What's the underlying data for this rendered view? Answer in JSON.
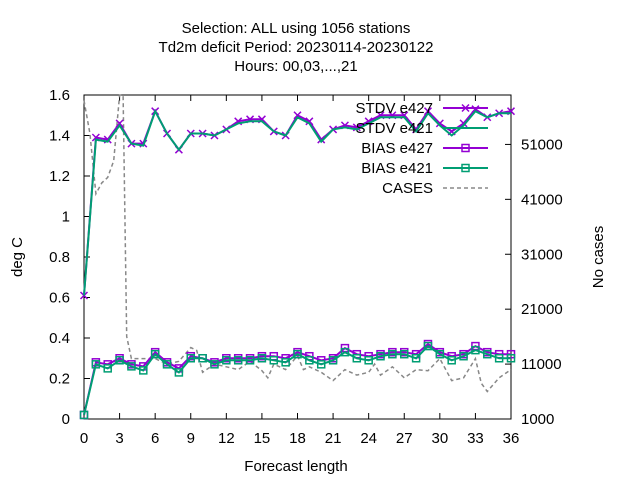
{
  "chart_data": {
    "type": "line",
    "title_lines": [
      "Selection: ALL using  1056 stations",
      "Td2m deficit   Period: 20230114-20230122",
      "Hours:  00,03,...,21"
    ],
    "xlabel": "Forecast length",
    "ylabel": "deg C",
    "y2label": "No cases",
    "xlim": [
      0,
      36
    ],
    "ylim": [
      0,
      1.6
    ],
    "y2lim": [
      1000,
      60000
    ],
    "x_ticks": [
      0,
      3,
      6,
      9,
      12,
      15,
      18,
      21,
      24,
      27,
      30,
      33,
      36
    ],
    "y_ticks": [
      0,
      0.2,
      0.4,
      0.6,
      0.8,
      1,
      1.2,
      1.4,
      1.6
    ],
    "y_tick_labels": [
      "0",
      "0.2",
      "0.4",
      "0.6",
      "0.8",
      "1",
      "1.2",
      "1.4",
      "1.6"
    ],
    "y2_ticks": [
      1000,
      11000,
      21000,
      31000,
      41000,
      51000
    ],
    "grid": false,
    "legend_position": "top-right",
    "x": [
      0,
      1,
      2,
      3,
      4,
      5,
      6,
      7,
      8,
      9,
      10,
      11,
      12,
      13,
      14,
      15,
      16,
      17,
      18,
      19,
      20,
      21,
      22,
      23,
      24,
      25,
      26,
      27,
      28,
      29,
      30,
      31,
      32,
      33,
      34,
      35,
      36
    ],
    "series": [
      {
        "name": "STDV e427",
        "color": "#9400d3",
        "marker": "x",
        "axis": "y",
        "values": [
          0.61,
          1.39,
          1.38,
          1.46,
          1.36,
          1.36,
          1.52,
          1.41,
          1.33,
          1.41,
          1.41,
          1.4,
          1.43,
          1.47,
          1.48,
          1.48,
          1.42,
          1.4,
          1.5,
          1.47,
          1.38,
          1.43,
          1.45,
          1.44,
          1.47,
          1.5,
          1.5,
          1.5,
          1.43,
          1.52,
          1.46,
          1.42,
          1.46,
          1.53,
          1.49,
          1.51,
          1.52
        ]
      },
      {
        "name": "STDV e421",
        "color": "#009e73",
        "marker": "none",
        "axis": "y",
        "values": [
          0.61,
          1.38,
          1.37,
          1.45,
          1.36,
          1.35,
          1.52,
          1.41,
          1.33,
          1.41,
          1.41,
          1.4,
          1.43,
          1.46,
          1.47,
          1.47,
          1.42,
          1.4,
          1.49,
          1.46,
          1.37,
          1.43,
          1.44,
          1.43,
          1.46,
          1.49,
          1.49,
          1.49,
          1.42,
          1.51,
          1.45,
          1.4,
          1.45,
          1.52,
          1.49,
          1.51,
          1.51
        ]
      },
      {
        "name": "BIAS e427",
        "color": "#9400d3",
        "marker": "square",
        "axis": "y",
        "values": [
          0.02,
          0.28,
          0.27,
          0.3,
          0.27,
          0.26,
          0.33,
          0.28,
          0.25,
          0.31,
          0.3,
          0.28,
          0.3,
          0.3,
          0.3,
          0.31,
          0.31,
          0.3,
          0.33,
          0.31,
          0.29,
          0.3,
          0.35,
          0.32,
          0.31,
          0.32,
          0.33,
          0.33,
          0.32,
          0.37,
          0.33,
          0.31,
          0.32,
          0.36,
          0.33,
          0.32,
          0.32
        ]
      },
      {
        "name": "BIAS e421",
        "color": "#009e73",
        "marker": "square",
        "axis": "y",
        "values": [
          0.02,
          0.27,
          0.25,
          0.29,
          0.26,
          0.24,
          0.32,
          0.27,
          0.23,
          0.3,
          0.3,
          0.27,
          0.29,
          0.29,
          0.29,
          0.3,
          0.29,
          0.28,
          0.32,
          0.29,
          0.27,
          0.29,
          0.33,
          0.3,
          0.29,
          0.31,
          0.32,
          0.32,
          0.3,
          0.36,
          0.32,
          0.29,
          0.31,
          0.34,
          0.32,
          0.3,
          0.3
        ]
      },
      {
        "name": "CASES",
        "color": "#888888",
        "marker": "none",
        "dash": true,
        "axis": "y2",
        "x": [
          0,
          0.5,
          1,
          1.5,
          2,
          2.5,
          3,
          3.3,
          3.6,
          4,
          5,
          6,
          7,
          8,
          9,
          9.5,
          10,
          11,
          12,
          13,
          14,
          15,
          15.5,
          16,
          17,
          18,
          18.5,
          19,
          20,
          21,
          22,
          23,
          24,
          24.5,
          25,
          26,
          27,
          28,
          29,
          30,
          31,
          32,
          33,
          33.5,
          34,
          35,
          36
        ],
        "values": [
          59000,
          53000,
          42000,
          44000,
          45000,
          48000,
          60000,
          60000,
          16000,
          12000,
          12000,
          12000,
          11000,
          11500,
          14000,
          13500,
          9500,
          11000,
          10500,
          10000,
          11500,
          9800,
          8500,
          11000,
          10000,
          12500,
          10000,
          10500,
          9500,
          8000,
          10000,
          9000,
          9500,
          11000,
          9000,
          10500,
          8500,
          10000,
          9800,
          12000,
          8000,
          8500,
          12000,
          7500,
          6000,
          8500,
          10000
        ]
      }
    ]
  }
}
